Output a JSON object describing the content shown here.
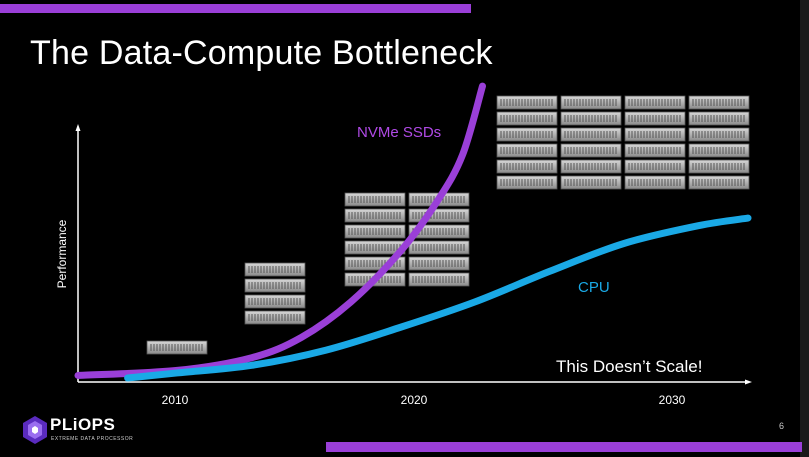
{
  "slide": {
    "title": "The Data-Compute Bottleneck",
    "page_number": "6",
    "accent_color": "#9a3fd8",
    "logo": {
      "text": "PLiOPS",
      "tagline": "EXTREME DATA PROCESSOR"
    }
  },
  "chart_data": {
    "type": "line",
    "ylabel": "Performance",
    "xlabel": "",
    "x_ticks": [
      "2010",
      "2020",
      "2030"
    ],
    "annotation": "This Doesn’t Scale!",
    "grid": false,
    "series": [
      {
        "name": "NVMe SSDs",
        "color": "#9a3fd8",
        "points": [
          [
            2006,
            0.01
          ],
          [
            2010,
            0.03
          ],
          [
            2013,
            0.08
          ],
          [
            2015,
            0.16
          ],
          [
            2017,
            0.3
          ],
          [
            2019,
            0.5
          ],
          [
            2020.5,
            0.7
          ],
          [
            2021.5,
            0.88
          ],
          [
            2022.3,
            1.15
          ]
        ]
      },
      {
        "name": "CPU",
        "color": "#1aa9e6",
        "points": [
          [
            2008,
            0.0
          ],
          [
            2010,
            0.02
          ],
          [
            2013,
            0.05
          ],
          [
            2016,
            0.11
          ],
          [
            2019,
            0.2
          ],
          [
            2022,
            0.3
          ],
          [
            2025,
            0.42
          ],
          [
            2028,
            0.53
          ],
          [
            2031,
            0.6
          ],
          [
            2033,
            0.63
          ]
        ]
      }
    ],
    "storage_racks": [
      {
        "year": 2011,
        "units": 1,
        "cols": 1
      },
      {
        "year": 2015,
        "units": 4,
        "cols": 1
      },
      {
        "year": 2020,
        "units": 12,
        "cols": 2
      },
      {
        "year": 2030,
        "units": 24,
        "cols": 4
      }
    ]
  }
}
